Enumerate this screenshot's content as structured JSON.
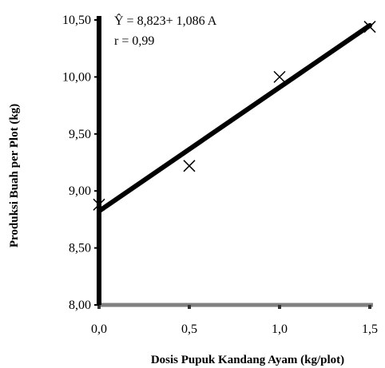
{
  "chart_data": {
    "type": "scatter",
    "xlabel": "Dosis Pupuk Kandang Ayam (kg/plot)",
    "ylabel": "Produksi Buah per Plot (kg)",
    "xlim": [
      0,
      1.5
    ],
    "ylim": [
      8.0,
      10.5
    ],
    "x_ticks": [
      "0,0",
      "0,5",
      "1,0",
      "1,5"
    ],
    "y_ticks": [
      "8,00",
      "8,50",
      "9,00",
      "9,50",
      "10,00",
      "10,50"
    ],
    "x_tick_values": [
      0,
      0.5,
      1.0,
      1.5
    ],
    "y_tick_values": [
      8.0,
      8.5,
      9.0,
      9.5,
      10.0,
      10.5
    ],
    "points": [
      {
        "x": 0.0,
        "y": 8.88
      },
      {
        "x": 0.5,
        "y": 9.22
      },
      {
        "x": 1.0,
        "y": 10.0
      },
      {
        "x": 1.5,
        "y": 10.44
      }
    ],
    "regression": {
      "intercept": 8.823,
      "slope": 1.086
    },
    "annotations": {
      "equation": "Ŷ  =  8,823+  1,086 A",
      "r": "r  = 0,99"
    },
    "grid": false,
    "marker": "x",
    "colors": {
      "line": "#000000",
      "x_axis": "#808080",
      "y_axis": "#000000"
    }
  }
}
